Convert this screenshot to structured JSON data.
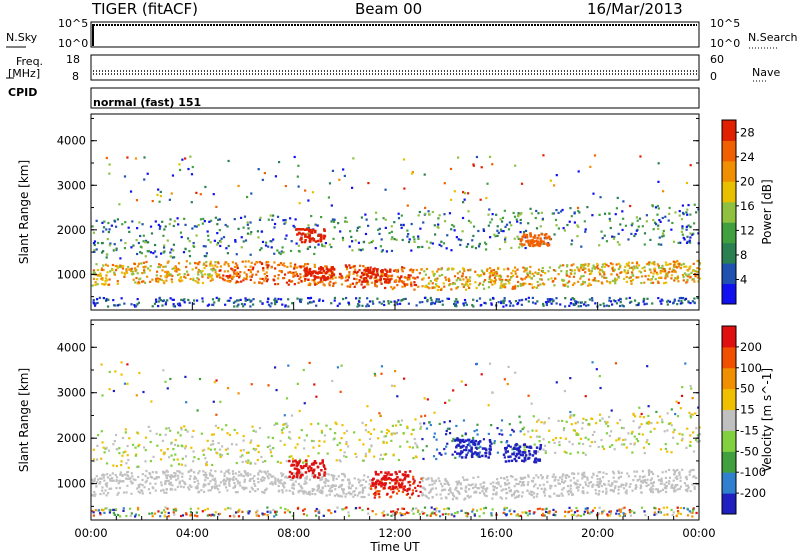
{
  "header": {
    "radar": "TIGER (fitACF)",
    "beam": "Beam 00",
    "date": "16/Mar/2013"
  },
  "panels": {
    "nsky_label": "N.Sky",
    "nsearch_label": "N.Search",
    "nsky_ticks": [
      "10^5",
      "10^0"
    ],
    "nsearch_ticks": [
      "10^5",
      "10^0"
    ],
    "freq_label_line1": "Freq.",
    "freq_label_line2": "[MHz]",
    "freq_ticks": [
      "18",
      "8"
    ],
    "nave_label": "Nave",
    "nave_ticks": [
      "60",
      "0"
    ],
    "cpid_label": "CPID",
    "cpid_value": "normal (fast) 151"
  },
  "chart_data": [
    {
      "type": "heatmap",
      "name": "power",
      "ylabel": "Slant Range [km]",
      "xlabel": "Time UT",
      "y_ticks": [
        "4000",
        "3000",
        "2000",
        "1000"
      ],
      "y_tick_values": [
        4000,
        3000,
        2000,
        1000
      ],
      "ylim": [
        200,
        4600
      ],
      "x_ticks": [
        "00:00",
        "04:00",
        "08:00",
        "12:00",
        "16:00",
        "20:00",
        "00:00"
      ],
      "xlim_hours": [
        0,
        24
      ],
      "colorbar": {
        "label": "Power [dB]",
        "ticks": [
          "28",
          "24",
          "20",
          "16",
          "12",
          "8",
          "4"
        ],
        "tick_values": [
          28,
          24,
          20,
          16,
          12,
          8,
          4
        ],
        "range": [
          0,
          30
        ],
        "colors": [
          "#1010f0",
          "#2050b0",
          "#2a8050",
          "#40a040",
          "#90c040",
          "#e8c000",
          "#f09000",
          "#f06000",
          "#e02000"
        ]
      }
    },
    {
      "type": "heatmap",
      "name": "velocity",
      "ylabel": "Slant Range [km]",
      "xlabel": "Time UT",
      "y_ticks": [
        "4000",
        "3000",
        "2000",
        "1000"
      ],
      "y_tick_values": [
        4000,
        3000,
        2000,
        1000
      ],
      "ylim": [
        200,
        4600
      ],
      "x_ticks": [
        "00:00",
        "04:00",
        "08:00",
        "12:00",
        "16:00",
        "20:00",
        "00:00"
      ],
      "xlim_hours": [
        0,
        24
      ],
      "colorbar": {
        "label": "Velocity [m s^-1]",
        "ticks": [
          "200",
          "100",
          "50",
          "15",
          "-15",
          "-50",
          "-100",
          "-200"
        ],
        "tick_values": [
          200,
          100,
          50,
          15,
          -15,
          -50,
          -100,
          -200
        ],
        "colors": [
          "#2020c0",
          "#3080d0",
          "#40a040",
          "#80d040",
          "#c0c0c0",
          "#f0c000",
          "#f09000",
          "#f05000",
          "#e01010"
        ]
      }
    }
  ]
}
